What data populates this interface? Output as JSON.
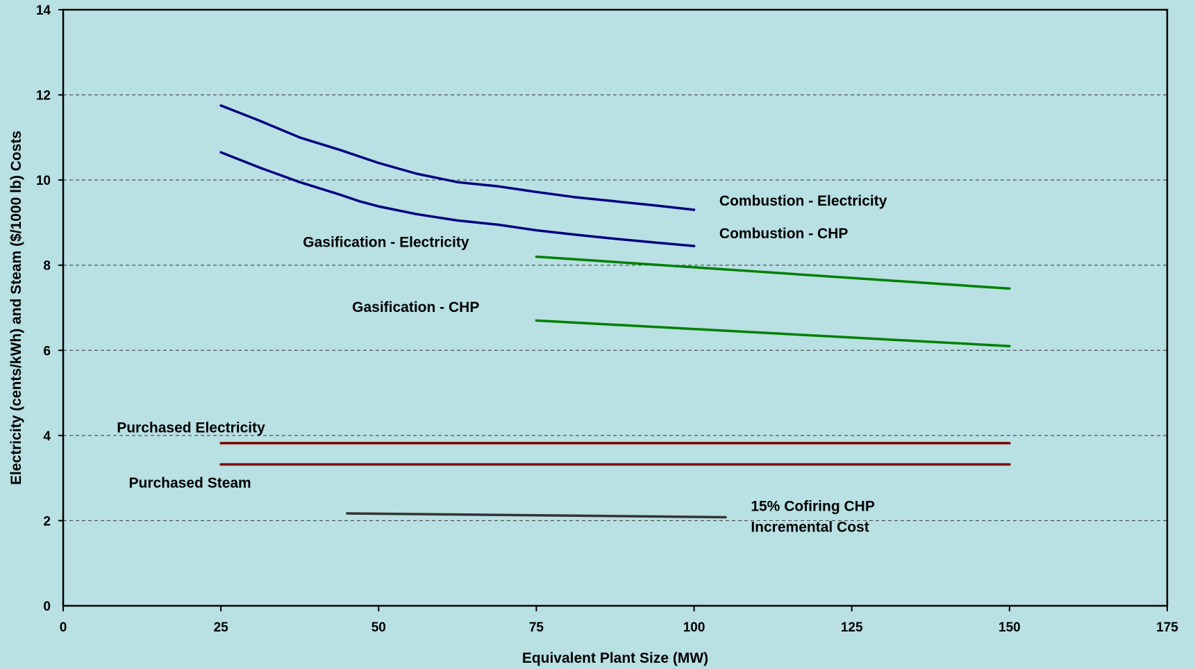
{
  "chart_data": {
    "type": "line",
    "title": "",
    "xlabel": "Equivalent Plant Size (MW)",
    "ylabel": "Electricity (cents/kWh) and Steam ($/1000 lb) Costs",
    "xlim": [
      0,
      175
    ],
    "ylim": [
      0,
      14
    ],
    "x_ticks": [
      "0",
      "25",
      "50",
      "75",
      "100",
      "125",
      "150",
      "175"
    ],
    "y_ticks": [
      "0",
      "2",
      "4",
      "6",
      "8",
      "10",
      "12",
      "14"
    ],
    "grid": true,
    "legend": "none (series labeled inline)",
    "series": [
      {
        "name": "Combustion - Electricity",
        "color": "#000080",
        "label_lines": [
          "Combustion - Electricity"
        ],
        "label_at": [
          104,
          9.4
        ],
        "points": [
          [
            25,
            11.75
          ],
          [
            31,
            11.4
          ],
          [
            37.5,
            11.0
          ],
          [
            44,
            10.7
          ],
          [
            50,
            10.4
          ],
          [
            56,
            10.15
          ],
          [
            62.5,
            9.95
          ],
          [
            69,
            9.85
          ],
          [
            75,
            9.72
          ],
          [
            81,
            9.6
          ],
          [
            87.5,
            9.5
          ],
          [
            94,
            9.4
          ],
          [
            100,
            9.3
          ]
        ]
      },
      {
        "name": "Combustion - CHP",
        "color": "#000080",
        "label_lines": [
          "Combustion - CHP"
        ],
        "label_at": [
          104,
          8.63
        ],
        "points": [
          [
            25,
            10.65
          ],
          [
            31,
            10.3
          ],
          [
            37.5,
            9.95
          ],
          [
            44,
            9.65
          ],
          [
            47,
            9.5
          ],
          [
            50,
            9.38
          ],
          [
            56,
            9.2
          ],
          [
            62.5,
            9.05
          ],
          [
            69,
            8.95
          ],
          [
            75,
            8.82
          ],
          [
            81,
            8.72
          ],
          [
            87.5,
            8.62
          ],
          [
            94,
            8.53
          ],
          [
            100,
            8.45
          ]
        ]
      },
      {
        "name": "Gasification - Electricity",
        "color": "#008000",
        "label_lines": [
          "Gasification - Electricity"
        ],
        "label_at": [
          38,
          8.43
        ],
        "points": [
          [
            75,
            8.2
          ],
          [
            100,
            7.95
          ],
          [
            125,
            7.7
          ],
          [
            150,
            7.45
          ]
        ]
      },
      {
        "name": "Gasification - CHP",
        "color": "#008000",
        "label_lines": [
          "Gasification - CHP"
        ],
        "label_at": [
          45.8,
          6.9
        ],
        "points": [
          [
            75,
            6.7
          ],
          [
            100,
            6.5
          ],
          [
            125,
            6.3
          ],
          [
            150,
            6.1
          ]
        ]
      },
      {
        "name": "Purchased Electricity",
        "color": "#800000",
        "label_lines": [
          "Purchased Electricity"
        ],
        "label_at": [
          8.5,
          4.07
        ],
        "points": [
          [
            25,
            3.82
          ],
          [
            150,
            3.82
          ]
        ]
      },
      {
        "name": "Purchased Steam",
        "color": "#800000",
        "label_lines": [
          "Purchased Steam"
        ],
        "label_at": [
          10.4,
          2.77
        ],
        "points": [
          [
            25,
            3.32
          ],
          [
            150,
            3.32
          ]
        ]
      },
      {
        "name": "15% Cofiring CHP Incremental Cost",
        "color": "#333333",
        "label_lines": [
          "15% Cofiring CHP",
          "Incremental Cost"
        ],
        "label_at": [
          109,
          2.23
        ],
        "points": [
          [
            45,
            2.17
          ],
          [
            105,
            2.08
          ]
        ]
      }
    ]
  }
}
